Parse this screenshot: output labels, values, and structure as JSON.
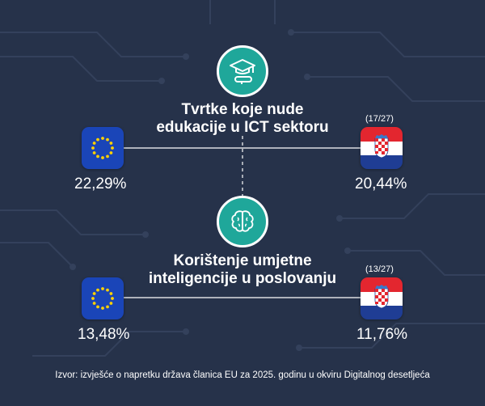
{
  "section1": {
    "title_line1": "Tvrtke koje nude",
    "title_line2": "edukacije u ICT sektoru",
    "icon": "graduation-cap-diploma-icon",
    "eu_value": "22,29%",
    "hr_value": "20,44%",
    "hr_rank": "(17/27)"
  },
  "section2": {
    "title_line1": "Korištenje umjetne",
    "title_line2": "inteligencije u poslovanju",
    "icon": "brain-icon",
    "eu_value": "13,48%",
    "hr_value": "11,76%",
    "hr_rank": "(13/27)"
  },
  "source": "Izvor: izvješće o napretku država članica EU za 2025. godinu u okviru Digitalnog desetljeća",
  "colors": {
    "background": "#26324a",
    "accent": "#1fa79a",
    "eu_blue": "#1a45b8",
    "eu_star": "#ffd100",
    "hr_red": "#e3262f",
    "hr_blue": "#1f3d94"
  }
}
